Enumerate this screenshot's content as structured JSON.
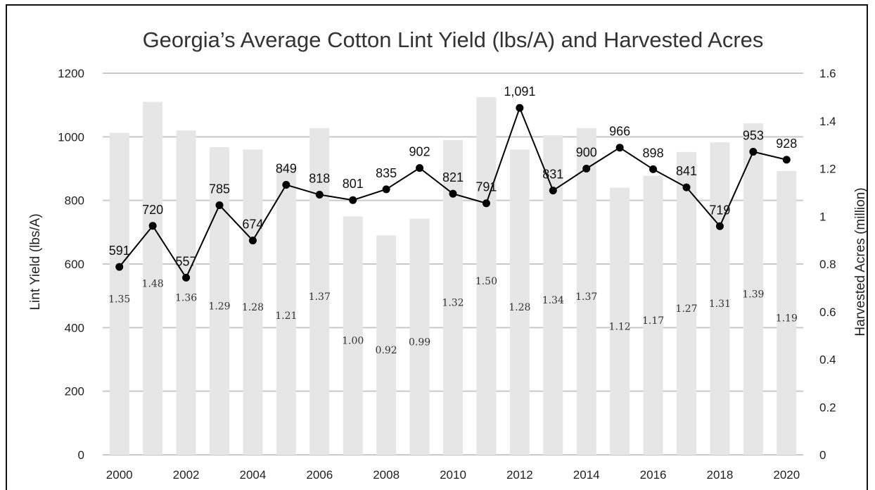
{
  "chart_data": {
    "type": "bar",
    "title": "Georgia’s Average Cotton Lint Yield (lbs/A) and Harvested Acres",
    "x": [
      2000,
      2001,
      2002,
      2003,
      2004,
      2005,
      2006,
      2007,
      2008,
      2009,
      2010,
      2011,
      2012,
      2013,
      2014,
      2015,
      2016,
      2017,
      2018,
      2019,
      2020
    ],
    "x_tick_labels": [
      "2000",
      "2002",
      "2004",
      "2006",
      "2008",
      "2010",
      "2012",
      "2014",
      "2016",
      "2018",
      "2020"
    ],
    "ylabel": "Lint Yield (lbs/A)",
    "ylim": [
      0,
      1200
    ],
    "y_tick_labels": [
      "0",
      "200",
      "400",
      "600",
      "800",
      "1000",
      "1200"
    ],
    "y2label": "Harvested Acres (million)",
    "y2lim": [
      0,
      1.6
    ],
    "y2_tick_labels": [
      "0",
      "0.2",
      "0.4",
      "0.6",
      "0.8",
      "1",
      "1.2",
      "1.4",
      "1.6"
    ],
    "grid": true,
    "series": [
      {
        "axis": "right",
        "type": "bar",
        "values": [
          1.35,
          1.48,
          1.36,
          1.29,
          1.28,
          1.21,
          1.37,
          1.0,
          0.92,
          0.99,
          1.32,
          1.5,
          1.28,
          1.34,
          1.37,
          1.12,
          1.17,
          1.27,
          1.31,
          1.39,
          1.19
        ],
        "labels": [
          "1.35",
          "1.48",
          "1.36",
          "1.29",
          "1.28",
          "1.21",
          "1.37",
          "1.00",
          "0.92",
          "0.99",
          "1.32",
          "1.50",
          "1.28",
          "1.34",
          "1.37",
          "1.12",
          "1.17",
          "1.27",
          "1.31",
          "1.39",
          "1.19"
        ],
        "color": "#e6e6e6"
      },
      {
        "axis": "left",
        "type": "line",
        "values": [
          591,
          720,
          557,
          785,
          674,
          849,
          818,
          801,
          835,
          902,
          821,
          791,
          1091,
          831,
          900,
          966,
          898,
          841,
          719,
          953,
          928
        ],
        "labels": [
          "591",
          "720",
          "557",
          "785",
          "674",
          "849",
          "818",
          "801",
          "835",
          "902",
          "821",
          "791",
          "1,091",
          "831",
          "900",
          "966",
          "898",
          "841",
          "719",
          "953",
          "928"
        ],
        "color": "#000000"
      }
    ]
  }
}
